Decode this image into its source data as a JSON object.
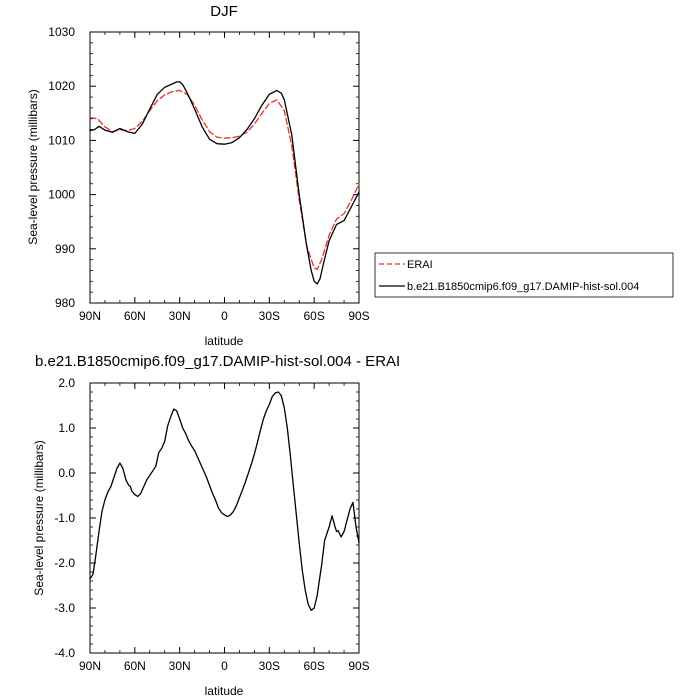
{
  "chart_data": [
    {
      "type": "line",
      "title": "DJF",
      "xlabel": "latitude",
      "ylabel": "Sea-level pressure (millibars)",
      "xlim": [
        90,
        -90
      ],
      "ylim": [
        980,
        1030
      ],
      "x_ticks": [
        90,
        60,
        30,
        0,
        -30,
        -60,
        -90
      ],
      "x_tick_labels": [
        "90N",
        "60N",
        "30N",
        "0",
        "30S",
        "60S",
        "90S"
      ],
      "y_ticks": [
        980,
        990,
        1000,
        1010,
        1020,
        1030
      ],
      "y_tick_labels": [
        "980",
        "990",
        "1000",
        "1010",
        "1020",
        "1030"
      ],
      "legend": {
        "position": "right",
        "entries": [
          "ERAI",
          "b.e21.B1850cmip6.f09_g17.DAMIP-hist-sol.004"
        ]
      },
      "series": [
        {
          "name": "ERAI",
          "color": "#e8312a",
          "dash": "dashed",
          "x": [
            90,
            85,
            80,
            75,
            70,
            65,
            60,
            55,
            50,
            45,
            40,
            35,
            30,
            25,
            20,
            15,
            10,
            5,
            0,
            -5,
            -10,
            -15,
            -20,
            -25,
            -30,
            -35,
            -40,
            -45,
            -50,
            -55,
            -60,
            -62,
            -65,
            -70,
            -75,
            -80,
            -85,
            -90
          ],
          "y": [
            1014.2,
            1014.0,
            1012.5,
            1011.6,
            1012.0,
            1011.8,
            1012.2,
            1013.5,
            1015.5,
            1017.3,
            1018.4,
            1019.0,
            1019.2,
            1018.5,
            1016.5,
            1013.8,
            1011.6,
            1010.6,
            1010.4,
            1010.5,
            1010.8,
            1011.5,
            1013.0,
            1015.0,
            1016.8,
            1017.5,
            1015.5,
            1009.0,
            999.0,
            990.5,
            986.5,
            986.2,
            988.0,
            992.5,
            995.5,
            996.5,
            999.0,
            1002.0
          ]
        },
        {
          "name": "b.e21.B1850cmip6.f09_g17.DAMIP-hist-sol.004",
          "color": "#000000",
          "dash": "solid",
          "x": [
            90,
            87,
            84,
            80,
            75,
            70,
            65,
            60,
            55,
            50,
            45,
            40,
            35,
            32,
            30,
            28,
            25,
            20,
            15,
            10,
            5,
            0,
            -5,
            -10,
            -15,
            -20,
            -25,
            -30,
            -35,
            -38,
            -40,
            -45,
            -50,
            -55,
            -58,
            -60,
            -62,
            -64,
            -66,
            -70,
            -75,
            -80,
            -85,
            -90
          ],
          "y": [
            1011.8,
            1012.0,
            1012.6,
            1011.9,
            1011.5,
            1012.2,
            1011.6,
            1011.3,
            1013.0,
            1015.8,
            1018.5,
            1019.8,
            1020.4,
            1020.8,
            1020.8,
            1020.3,
            1018.8,
            1015.8,
            1012.5,
            1010.2,
            1009.4,
            1009.3,
            1009.6,
            1010.5,
            1012.0,
            1014.0,
            1016.5,
            1018.5,
            1019.2,
            1018.7,
            1017.5,
            1011.0,
            1000.0,
            990.5,
            986.0,
            984.0,
            983.5,
            984.5,
            987.0,
            991.5,
            994.5,
            995.2,
            997.8,
            1000.5
          ]
        }
      ]
    },
    {
      "type": "line",
      "title": "b.e21.B1850cmip6.f09_g17.DAMIP-hist-sol.004 - ERAI",
      "xlabel": "latitude",
      "ylabel": "Sea-level pressure (millibars)",
      "xlim": [
        90,
        -90
      ],
      "ylim": [
        -4.0,
        2.0
      ],
      "x_ticks": [
        90,
        60,
        30,
        0,
        -30,
        -60,
        -90
      ],
      "x_tick_labels": [
        "90N",
        "60N",
        "30N",
        "0",
        "30S",
        "60S",
        "90S"
      ],
      "y_ticks": [
        -4.0,
        -3.0,
        -2.0,
        -1.0,
        0.0,
        1.0,
        2.0
      ],
      "y_tick_labels": [
        "-4.0",
        "-3.0",
        "-2.0",
        "-1.0",
        "0.0",
        "1.0",
        "2.0"
      ],
      "series": [
        {
          "color": "#000000",
          "dash": "solid",
          "x": [
            90,
            88,
            86,
            84,
            82,
            80,
            78,
            76,
            74,
            72,
            70,
            68,
            66,
            64,
            63,
            62,
            60,
            58,
            56,
            54,
            52,
            50,
            48,
            46,
            45,
            44,
            42,
            40,
            38,
            36,
            34,
            32,
            30,
            28,
            26,
            24,
            22,
            20,
            18,
            16,
            14,
            12,
            10,
            8,
            6,
            4,
            2,
            0,
            -2,
            -4,
            -6,
            -8,
            -10,
            -12,
            -14,
            -16,
            -18,
            -20,
            -22,
            -24,
            -26,
            -28,
            -30,
            -32,
            -34,
            -36,
            -38,
            -40,
            -42,
            -44,
            -46,
            -48,
            -50,
            -52,
            -54,
            -56,
            -58,
            -60,
            -62,
            -63,
            -65,
            -67,
            -70,
            -72,
            -74,
            -75,
            -76,
            -78,
            -80,
            -82,
            -84,
            -86,
            -88,
            -90
          ],
          "y": [
            -2.35,
            -2.25,
            -1.8,
            -1.3,
            -0.85,
            -0.6,
            -0.42,
            -0.3,
            -0.1,
            0.1,
            0.22,
            0.1,
            -0.15,
            -0.28,
            -0.3,
            -0.4,
            -0.48,
            -0.52,
            -0.45,
            -0.3,
            -0.15,
            -0.05,
            0.05,
            0.15,
            0.3,
            0.45,
            0.55,
            0.7,
            1.05,
            1.25,
            1.42,
            1.38,
            1.2,
            1.0,
            0.88,
            0.72,
            0.6,
            0.5,
            0.35,
            0.2,
            0.05,
            -0.1,
            -0.28,
            -0.45,
            -0.6,
            -0.78,
            -0.88,
            -0.93,
            -0.97,
            -0.93,
            -0.85,
            -0.72,
            -0.55,
            -0.38,
            -0.2,
            0.0,
            0.2,
            0.42,
            0.68,
            0.95,
            1.2,
            1.38,
            1.52,
            1.7,
            1.78,
            1.8,
            1.72,
            1.45,
            1.0,
            0.4,
            -0.25,
            -0.9,
            -1.55,
            -2.15,
            -2.6,
            -2.92,
            -3.05,
            -3.0,
            -2.72,
            -2.5,
            -2.05,
            -1.5,
            -1.2,
            -0.95,
            -1.2,
            -1.3,
            -1.28,
            -1.42,
            -1.3,
            -1.05,
            -0.8,
            -0.65,
            -1.2,
            -1.55
          ]
        }
      ]
    }
  ]
}
